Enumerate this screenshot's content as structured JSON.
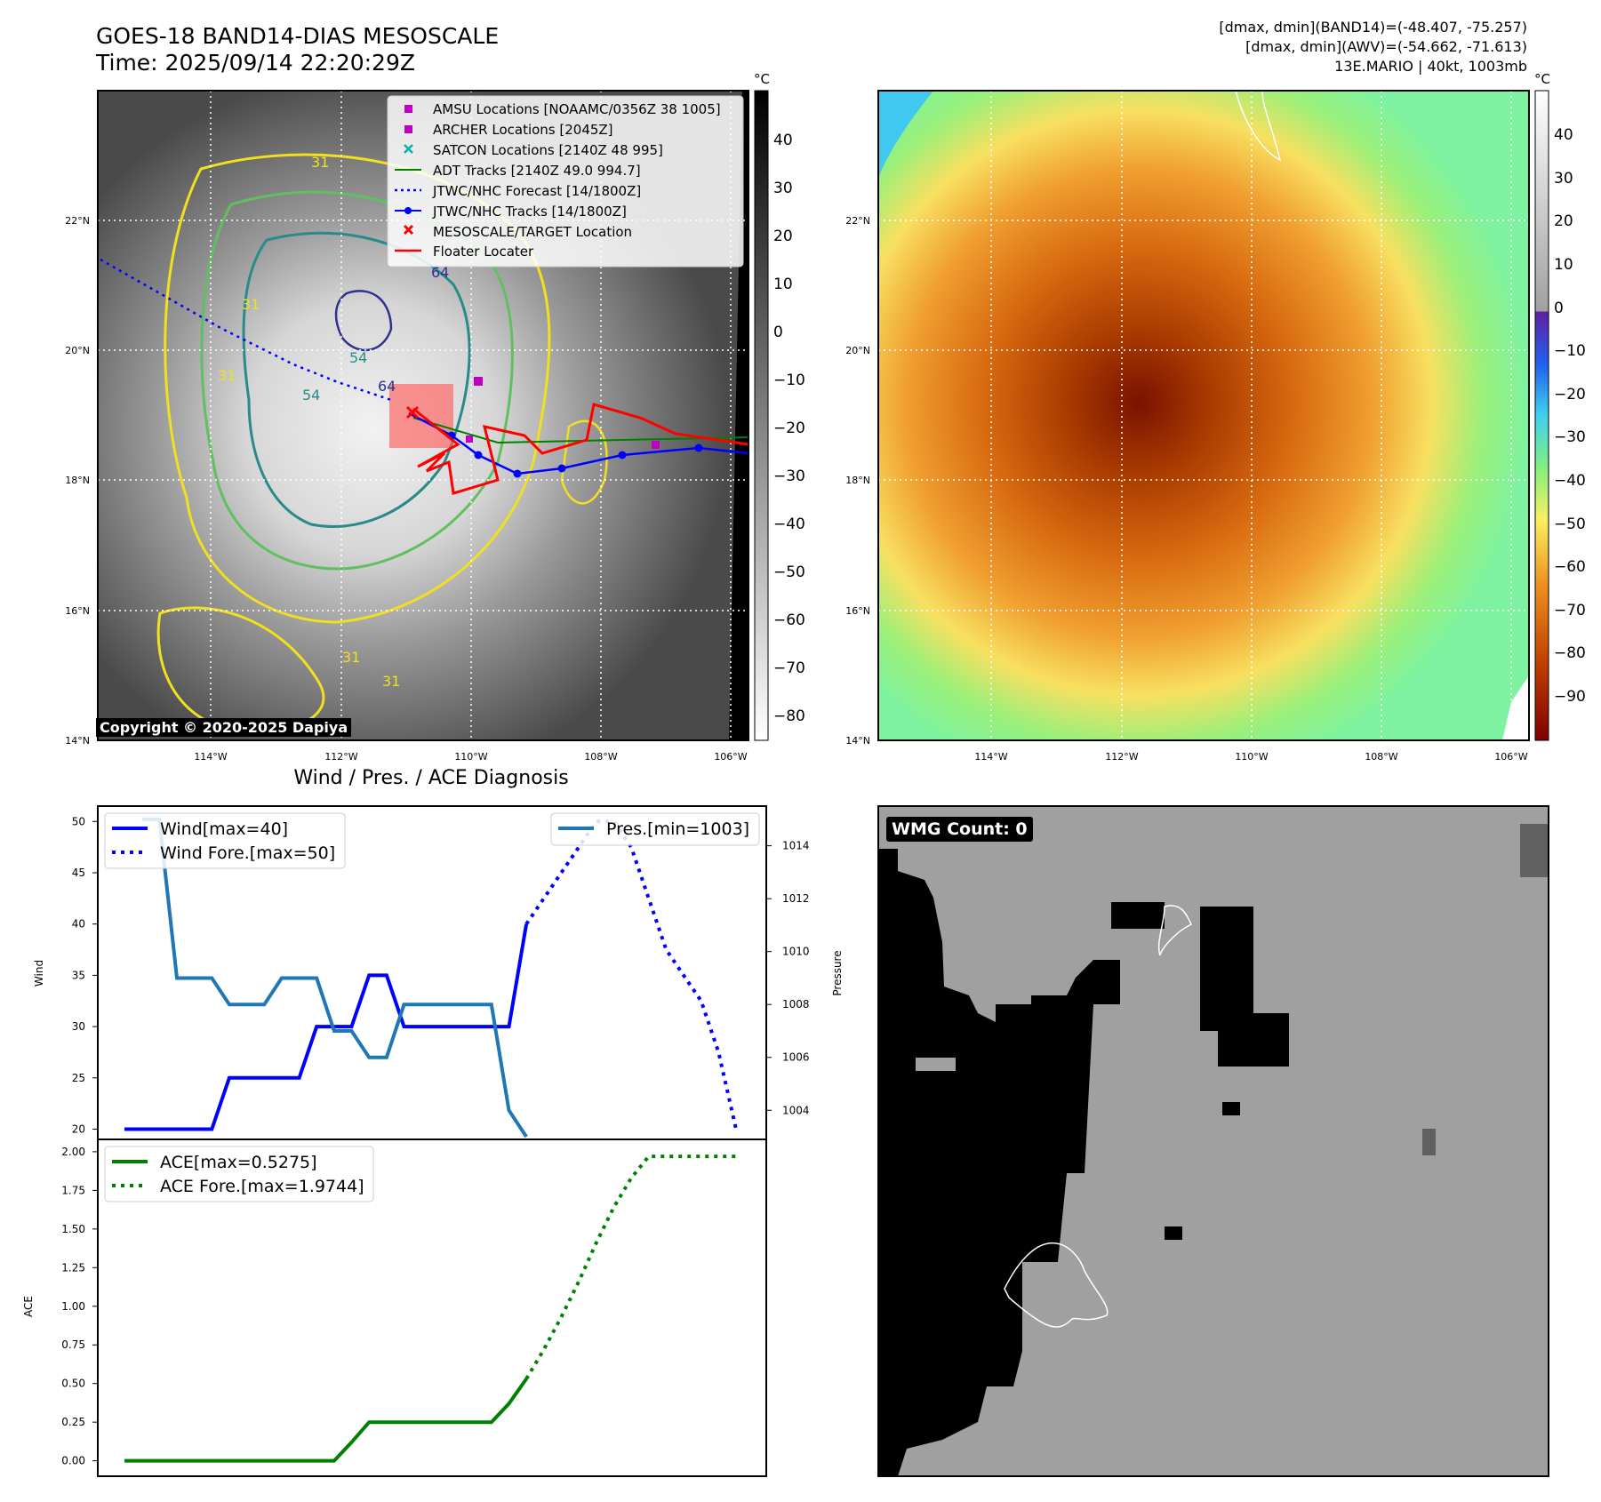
{
  "header": {
    "title_line1": "GOES-18 BAND14-DIAS MESOSCALE",
    "title_line2": "Time: 2025/09/14 22:20:29Z",
    "info_line1": "[dmax, dmin](BAND14)=(-48.407, -75.257)",
    "info_line2": "[dmax, dmin](AWV)=(-54.662, -71.613)",
    "info_line3": "13E.MARIO | 40kt, 1003mb"
  },
  "ir_map": {
    "copyright": "Copyright © 2020-2025 Dapiya",
    "lat_ticks": [
      "22°N",
      "20°N",
      "18°N",
      "16°N",
      "14°N"
    ],
    "lon_ticks": [
      "114°W",
      "112°W",
      "110°W",
      "108°W",
      "106°W"
    ],
    "colorbar_unit": "°C",
    "colorbar_ticks": [
      "40",
      "30",
      "20",
      "10",
      "0",
      "−10",
      "−20",
      "−30",
      "−40",
      "−50",
      "−60",
      "−70",
      "−80"
    ],
    "contour_labels": [
      "31",
      "31",
      "31",
      "31",
      "31",
      "54",
      "54",
      "64",
      "64"
    ],
    "legend": [
      {
        "label": "AMSU Locations [NOAAMC/0356Z 38 1005]",
        "color": "#c000c0",
        "marker": "square"
      },
      {
        "label": "ARCHER Locations [2045Z]",
        "color": "#c000c0",
        "marker": "square"
      },
      {
        "label": "SATCON Locations [2140Z 48 995]",
        "color": "#00b0b0",
        "marker": "x"
      },
      {
        "label": "ADT Tracks [2140Z 49.0 994.7]",
        "color": "#008000",
        "marker": "line"
      },
      {
        "label": "JTWC/NHC Forecast [14/1800Z]",
        "color": "#0000ff",
        "marker": "dotted"
      },
      {
        "label": "JTWC/NHC Tracks [14/1800Z]",
        "color": "#0000ff",
        "marker": "line-dot"
      },
      {
        "label": "MESOSCALE/TARGET Location",
        "color": "#ff0000",
        "marker": "x"
      },
      {
        "label": "Floater Locater",
        "color": "#ff0000",
        "marker": "line"
      }
    ]
  },
  "awv_map": {
    "lat_ticks": [
      "22°N",
      "20°N",
      "18°N",
      "16°N",
      "14°N"
    ],
    "lon_ticks": [
      "114°W",
      "112°W",
      "110°W",
      "108°W",
      "106°W"
    ],
    "colorbar_unit": "°C",
    "colorbar_ticks": [
      "40",
      "30",
      "20",
      "10",
      "0",
      "−10",
      "−20",
      "−30",
      "−40",
      "−50",
      "−60",
      "−70",
      "−80",
      "−90"
    ]
  },
  "wmg": {
    "badge": "WMG Count: 0"
  },
  "colors": {
    "wind": "#0000ff",
    "pressure": "#1f77b4",
    "ace": "#008000",
    "wmg_background": "#a0a0a0",
    "wmg_land": "#000000"
  },
  "chart_data": [
    {
      "type": "line",
      "title": "Wind / Pres. / ACE Diagnosis",
      "ylabel": "Wind",
      "y2label": "Pressure",
      "ylim": [
        19,
        51.5
      ],
      "y2lim": [
        1002.9,
        1015.5
      ],
      "yticks": [
        "20",
        "25",
        "30",
        "35",
        "40",
        "45",
        "50"
      ],
      "y2ticks": [
        "1004",
        "1006",
        "1008",
        "1010",
        "1012",
        "1014"
      ],
      "x_count": 36,
      "series": [
        {
          "name": "Wind[max=40]",
          "axis": "left",
          "style": "solid",
          "x": [
            0,
            1,
            2,
            3,
            4,
            5,
            6,
            7,
            8,
            9,
            10,
            11,
            12,
            13,
            14,
            15,
            16,
            17,
            18,
            19,
            20,
            21,
            22,
            23
          ],
          "values": [
            20,
            20,
            20,
            20,
            20,
            20,
            25,
            25,
            25,
            25,
            25,
            30,
            30,
            30,
            35,
            35,
            30,
            30,
            30,
            30,
            30,
            30,
            30,
            40
          ]
        },
        {
          "name": "Wind Fore.[max=50]",
          "axis": "left",
          "style": "dotted",
          "x": [
            23,
            24,
            25,
            26,
            27,
            28,
            29,
            30,
            31,
            32,
            33,
            34,
            35
          ],
          "values": [
            40,
            42.5,
            45,
            47.5,
            50,
            50,
            47.5,
            42.5,
            37.5,
            35,
            32.5,
            27.5,
            20
          ]
        },
        {
          "name": "Pres.[min=1003]",
          "axis": "right",
          "style": "solid",
          "x": [
            1,
            2,
            3,
            4,
            5,
            6,
            7,
            8,
            9,
            10,
            11,
            12,
            13,
            14,
            15,
            16,
            17,
            18,
            19,
            20,
            21,
            22,
            23
          ],
          "values": [
            1015,
            1015,
            1009,
            1009,
            1009,
            1008,
            1008,
            1008,
            1009,
            1009,
            1009,
            1007,
            1007,
            1006,
            1006,
            1008,
            1008,
            1008,
            1008,
            1008,
            1008,
            1004,
            1003
          ]
        }
      ],
      "legend_left": [
        "Wind[max=40]",
        "Wind Fore.[max=50]"
      ],
      "legend_right": [
        "Pres.[min=1003]"
      ]
    },
    {
      "type": "line",
      "ylabel": "ACE",
      "ylim": [
        -0.1,
        2.08
      ],
      "yticks": [
        "0.00",
        "0.25",
        "0.50",
        "0.75",
        "1.00",
        "1.25",
        "1.50",
        "1.75",
        "2.00"
      ],
      "x_count": 36,
      "series": [
        {
          "name": "ACE[max=0.5275]",
          "style": "solid",
          "x": [
            0,
            1,
            2,
            3,
            4,
            5,
            6,
            7,
            8,
            9,
            10,
            11,
            12,
            13,
            14,
            15,
            16,
            17,
            18,
            19,
            20,
            21,
            22,
            23
          ],
          "values": [
            0,
            0,
            0,
            0,
            0,
            0,
            0,
            0,
            0,
            0,
            0,
            0,
            0,
            0.12,
            0.25,
            0.25,
            0.25,
            0.25,
            0.25,
            0.25,
            0.25,
            0.25,
            0.37,
            0.53
          ]
        },
        {
          "name": "ACE Fore.[max=1.9744]",
          "style": "dotted",
          "x": [
            23,
            24,
            25,
            26,
            27,
            28,
            29,
            30,
            31,
            32,
            33,
            34,
            35
          ],
          "values": [
            0.53,
            0.72,
            0.93,
            1.16,
            1.41,
            1.64,
            1.83,
            1.97,
            1.97,
            1.97,
            1.97,
            1.97,
            1.97
          ]
        }
      ]
    }
  ]
}
